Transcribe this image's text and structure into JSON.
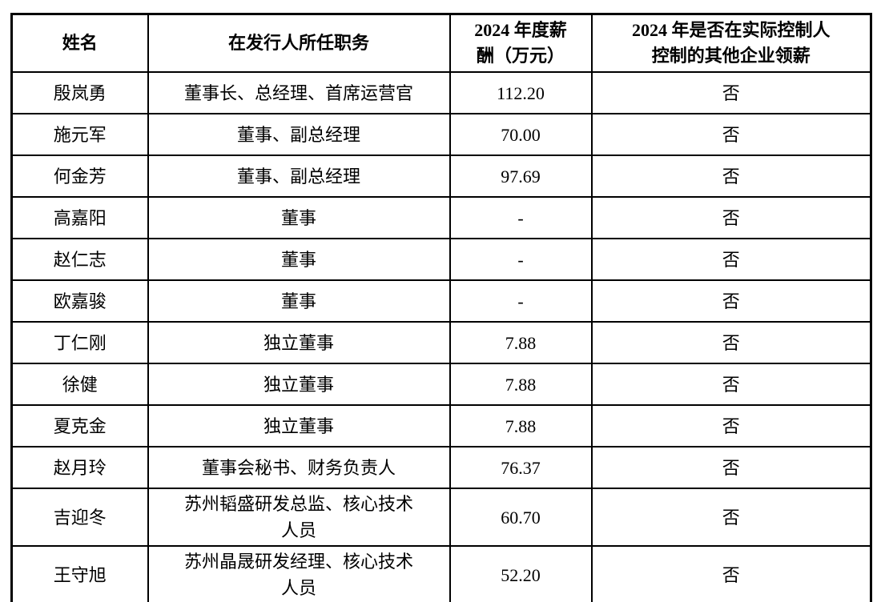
{
  "table": {
    "columns": [
      {
        "label": "姓名"
      },
      {
        "label": "在发行人所任职务"
      },
      {
        "label": "2024 年度薪\n酬（万元）"
      },
      {
        "label": "2024 年是否在实际控制人\n控制的其他企业领薪"
      }
    ],
    "rows": [
      {
        "name": "殷岚勇",
        "position": "董事长、总经理、首席运营官",
        "salary": "112.20",
        "other_pay": "否"
      },
      {
        "name": "施元军",
        "position": "董事、副总经理",
        "salary": "70.00",
        "other_pay": "否"
      },
      {
        "name": "何金芳",
        "position": "董事、副总经理",
        "salary": "97.69",
        "other_pay": "否"
      },
      {
        "name": "高嘉阳",
        "position": "董事",
        "salary": "-",
        "other_pay": "否"
      },
      {
        "name": "赵仁志",
        "position": "董事",
        "salary": "-",
        "other_pay": "否"
      },
      {
        "name": "欧嘉骏",
        "position": "董事",
        "salary": "-",
        "other_pay": "否"
      },
      {
        "name": "丁仁刚",
        "position": "独立董事",
        "salary": "7.88",
        "other_pay": "否"
      },
      {
        "name": "徐健",
        "position": "独立董事",
        "salary": "7.88",
        "other_pay": "否"
      },
      {
        "name": "夏克金",
        "position": "独立董事",
        "salary": "7.88",
        "other_pay": "否"
      },
      {
        "name": "赵月玲",
        "position": "董事会秘书、财务负责人",
        "salary": "76.37",
        "other_pay": "否"
      },
      {
        "name": "吉迎冬",
        "position": "苏州韬盛研发总监、核心技术\n人员",
        "salary": "60.70",
        "other_pay": "否"
      },
      {
        "name": "王守旭",
        "position": "苏州晶晟研发经理、核心技术\n人员",
        "salary": "52.20",
        "other_pay": "否"
      }
    ]
  }
}
